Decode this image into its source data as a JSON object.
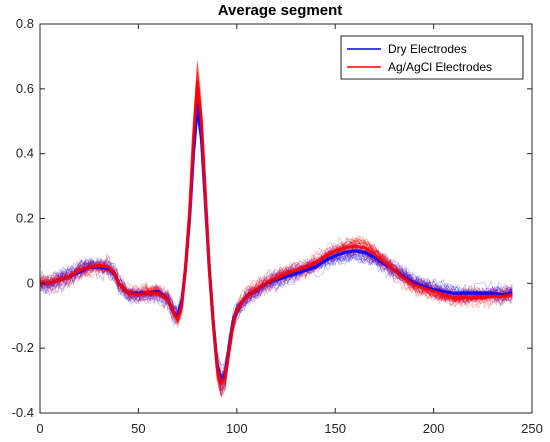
{
  "chart_data": {
    "type": "line",
    "title": "Average segment",
    "xlabel": "",
    "ylabel": "",
    "xlim": [
      0,
      250
    ],
    "ylim": [
      -0.4,
      0.8
    ],
    "xticks": [
      "0",
      "50",
      "100",
      "150",
      "200",
      "250"
    ],
    "yticks": [
      "-0.4",
      "-0.2",
      "0",
      "0.2",
      "0.4",
      "0.6",
      "0.8"
    ],
    "grid": false,
    "legend_position": "top-right",
    "series": [
      {
        "name": "Dry Electrodes",
        "color": "#0000ff",
        "x": [
          0,
          5,
          10,
          15,
          20,
          25,
          30,
          35,
          38,
          40,
          45,
          50,
          55,
          60,
          65,
          68,
          70,
          72,
          74,
          76,
          78,
          80,
          82,
          84,
          86,
          88,
          90,
          92,
          94,
          96,
          98,
          100,
          105,
          110,
          115,
          120,
          125,
          130,
          135,
          140,
          145,
          150,
          155,
          160,
          165,
          170,
          175,
          180,
          185,
          190,
          195,
          200,
          205,
          210,
          215,
          220,
          225,
          230,
          235,
          240
        ],
        "y": [
          0.0,
          0.0,
          0.01,
          0.02,
          0.035,
          0.05,
          0.05,
          0.045,
          0.03,
          0.0,
          -0.03,
          -0.03,
          -0.03,
          -0.025,
          -0.05,
          -0.09,
          -0.1,
          -0.06,
          0.05,
          0.2,
          0.4,
          0.55,
          0.45,
          0.25,
          0.05,
          -0.12,
          -0.25,
          -0.3,
          -0.28,
          -0.2,
          -0.12,
          -0.08,
          -0.04,
          -0.02,
          0.0,
          0.01,
          0.02,
          0.03,
          0.04,
          0.05,
          0.07,
          0.085,
          0.095,
          0.1,
          0.095,
          0.08,
          0.06,
          0.04,
          0.02,
          0.0,
          -0.01,
          -0.02,
          -0.025,
          -0.03,
          -0.03,
          -0.03,
          -0.03,
          -0.03,
          -0.035,
          -0.03
        ]
      },
      {
        "name": "Ag/AgCl Electrodes",
        "color": "#ff0000",
        "x": [
          0,
          5,
          10,
          15,
          20,
          25,
          30,
          35,
          38,
          40,
          45,
          50,
          55,
          60,
          65,
          68,
          70,
          72,
          74,
          76,
          78,
          80,
          82,
          84,
          86,
          88,
          90,
          92,
          94,
          96,
          98,
          100,
          105,
          110,
          115,
          120,
          125,
          130,
          135,
          140,
          145,
          150,
          155,
          160,
          165,
          170,
          175,
          180,
          185,
          190,
          195,
          200,
          205,
          210,
          215,
          220,
          225,
          230,
          235,
          240
        ],
        "y": [
          0.0,
          0.0,
          0.01,
          0.02,
          0.04,
          0.05,
          0.055,
          0.05,
          0.03,
          0.0,
          -0.03,
          -0.035,
          -0.03,
          -0.03,
          -0.05,
          -0.09,
          -0.11,
          -0.07,
          0.05,
          0.22,
          0.45,
          0.62,
          0.5,
          0.28,
          0.05,
          -0.12,
          -0.26,
          -0.31,
          -0.29,
          -0.21,
          -0.13,
          -0.08,
          -0.04,
          -0.02,
          0.0,
          0.015,
          0.03,
          0.04,
          0.05,
          0.065,
          0.085,
          0.1,
          0.11,
          0.115,
          0.11,
          0.09,
          0.065,
          0.04,
          0.015,
          -0.005,
          -0.015,
          -0.025,
          -0.035,
          -0.045,
          -0.045,
          -0.045,
          -0.045,
          -0.04,
          -0.04,
          -0.035
        ]
      }
    ]
  }
}
